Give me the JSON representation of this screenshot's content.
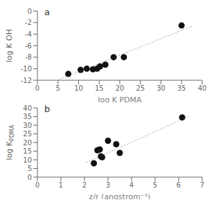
{
  "chart_data": [
    {
      "type": "scatter",
      "annotation": "a",
      "xlabel": "log K PDMA",
      "ylabel": "log K OH",
      "xlim": [
        0,
        40
      ],
      "ylim": [
        -12,
        0
      ],
      "xticks": [
        0,
        5,
        10,
        15,
        20,
        25,
        30,
        35,
        40
      ],
      "yticks": [
        0,
        -2,
        -4,
        -6,
        -8,
        -10,
        -12
      ],
      "series": [
        {
          "type": "scatter",
          "marker": "circle",
          "color": "#111111",
          "x": [
            7.5,
            10.5,
            12.0,
            13.5,
            14.5,
            15.2,
            16.5,
            18.5,
            21.0,
            35.0
          ],
          "values": [
            -10.9,
            -10.2,
            -10.0,
            -10.1,
            -10.0,
            -9.6,
            -9.3,
            -8.0,
            -8.0,
            -2.5
          ]
        },
        {
          "type": "line",
          "line_style": "dotted",
          "color": "#555555",
          "x": [
            5.5,
            38.0
          ],
          "values": [
            -11.8,
            -2.5
          ]
        }
      ]
    },
    {
      "type": "scatter",
      "annotation": "b",
      "xlabel": "z/r (angstrom⁻¹)",
      "ylabel": "log K",
      "ylabel_subscript": "PDMA",
      "xlim": [
        0,
        7
      ],
      "ylim": [
        0,
        40
      ],
      "xticks": [
        0,
        1,
        2,
        3,
        4,
        5,
        6,
        7
      ],
      "yticks": [
        0,
        5,
        10,
        15,
        20,
        25,
        30,
        35,
        40
      ],
      "series": [
        {
          "type": "scatter",
          "marker": "circle",
          "color": "#111111",
          "x": [
            2.4,
            2.55,
            2.65,
            2.7,
            2.75,
            3.0,
            3.35,
            3.5,
            6.15
          ],
          "values": [
            8.0,
            15.5,
            16.0,
            12.0,
            11.5,
            21.0,
            19.0,
            14.0,
            34.5
          ]
        },
        {
          "type": "line",
          "line_style": "dotted",
          "color": "#555555",
          "x": [
            2.1,
            6.5
          ],
          "values": [
            8.5,
            35.5
          ]
        }
      ]
    }
  ]
}
